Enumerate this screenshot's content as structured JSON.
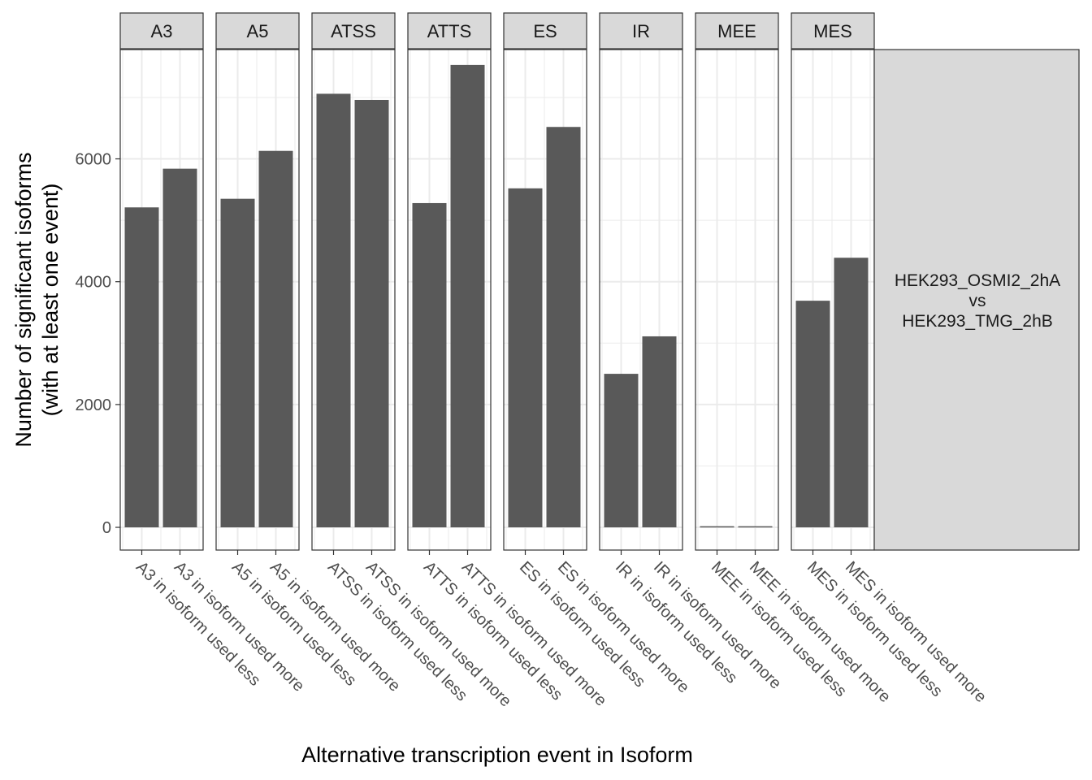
{
  "chart_data": {
    "type": "bar",
    "facets": [
      {
        "name": "A3",
        "categories": [
          "A3 in isoform used less",
          "A3 in isoform used more"
        ],
        "values": [
          5210,
          5840
        ]
      },
      {
        "name": "A5",
        "categories": [
          "A5 in isoform used less",
          "A5 in isoform used more"
        ],
        "values": [
          5350,
          6130
        ]
      },
      {
        "name": "ATSS",
        "categories": [
          "ATSS in isoform used less",
          "ATSS in isoform used more"
        ],
        "values": [
          7060,
          6960
        ]
      },
      {
        "name": "ATTS",
        "categories": [
          "ATTS in isoform used less",
          "ATTS in isoform used more"
        ],
        "values": [
          5280,
          7530
        ]
      },
      {
        "name": "ES",
        "categories": [
          "ES in isoform used less",
          "ES in isoform used more"
        ],
        "values": [
          5520,
          6520
        ]
      },
      {
        "name": "IR",
        "categories": [
          "IR in isoform used less",
          "IR in isoform used more"
        ],
        "values": [
          2500,
          3110
        ]
      },
      {
        "name": "MEE",
        "categories": [
          "MEE in isoform used less",
          "MEE in isoform used more"
        ],
        "values": [
          18,
          18
        ]
      },
      {
        "name": "MES",
        "categories": [
          "MES in isoform used less",
          "MES in isoform used more"
        ],
        "values": [
          3690,
          4390
        ]
      }
    ],
    "side_strip_lines": [
      "HEK293_OSMI2_2hA",
      "vs",
      "HEK293_TMG_2hB"
    ],
    "xlabel": "Alternative transcription event in Isoform",
    "ylabel_lines": [
      "Number of significant isoforms",
      "(with at least one event)"
    ],
    "yticks": [
      0,
      2000,
      4000,
      6000
    ],
    "ylim": [
      -370,
      7780
    ],
    "grid": true,
    "bar_color": "#595959",
    "strip_fill": "#d9d9d9",
    "grid_color": "#ebebeb",
    "panel_border_color": "#333333"
  }
}
